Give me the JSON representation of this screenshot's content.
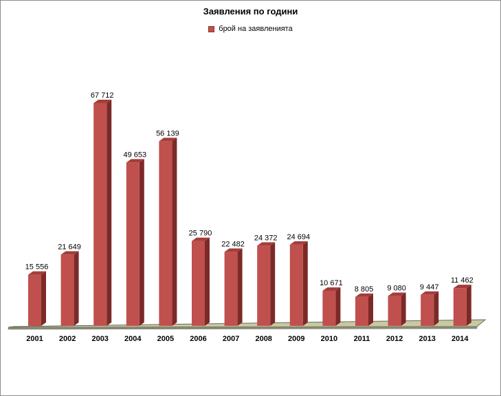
{
  "chart_data": {
    "type": "bar",
    "title": "Заявления по години",
    "categories": [
      "2001",
      "2002",
      "2003",
      "2004",
      "2005",
      "2006",
      "2007",
      "2008",
      "2009",
      "2010",
      "2011",
      "2012",
      "2013",
      "2014"
    ],
    "series": [
      {
        "name": "брой на заявленията",
        "values": [
          15556,
          21649,
          67712,
          49653,
          56139,
          25790,
          22482,
          24372,
          24694,
          10671,
          8805,
          9080,
          9447,
          11462
        ],
        "labels": [
          "15 556",
          "21 649",
          "67 712",
          "49 653",
          "56 139",
          "25 790",
          "22 482",
          "24 372",
          "24 694",
          "10 671",
          "8 805",
          "9 080",
          "9 447",
          "11 462"
        ]
      }
    ],
    "xlabel": "",
    "ylabel": "",
    "ylim": [
      0,
      70000
    ],
    "grid": false,
    "legend_position": "top",
    "colors": {
      "bar_front": "#c0504d",
      "bar_side": "#7b2a28",
      "bar_top": "#a33e3b",
      "floor": "#c9c9a0"
    }
  }
}
